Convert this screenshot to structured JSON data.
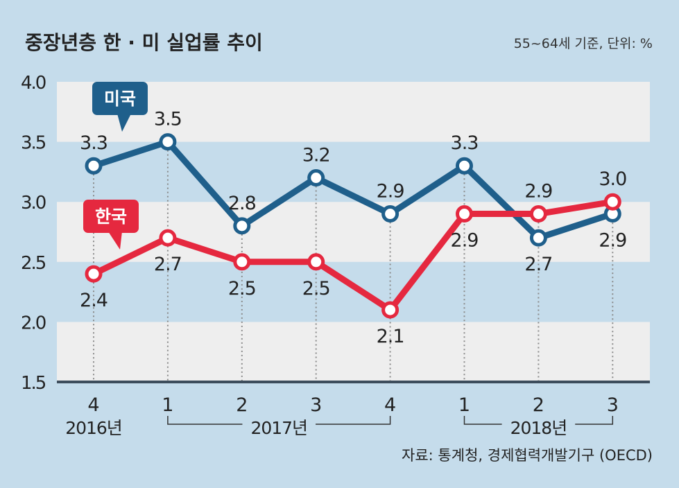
{
  "chart_data": {
    "type": "line",
    "title": "중장년층 한 · 미 실업률 추이",
    "subtitle": "55~64세 기준, 단위: %",
    "source": "자료: 통계청, 경제협력개발기구 (OECD)",
    "categories": [
      "4",
      "1",
      "2",
      "3",
      "4",
      "1",
      "2",
      "3"
    ],
    "year_groups": [
      {
        "label": "2016년",
        "start": 0,
        "end": 0
      },
      {
        "label": "2017년",
        "start": 1,
        "end": 4
      },
      {
        "label": "2018년",
        "start": 5,
        "end": 7
      }
    ],
    "ylim": [
      1.5,
      4.0
    ],
    "yticks": [
      "1.5",
      "2.0",
      "2.5",
      "3.0",
      "3.5",
      "4.0"
    ],
    "series": [
      {
        "name": "미국",
        "color": "#1f5f8b",
        "values": [
          3.3,
          3.5,
          2.8,
          3.2,
          2.9,
          3.3,
          2.7,
          2.9
        ],
        "labels": [
          "3.3",
          "3.5",
          "2.8",
          "3.2",
          "2.9",
          "3.3",
          "2.7",
          "2.9"
        ]
      },
      {
        "name": "한국",
        "color": "#e5283f",
        "values": [
          2.4,
          2.7,
          2.5,
          2.5,
          2.1,
          2.9,
          2.9,
          3.0
        ],
        "labels": [
          "2.4",
          "2.7",
          "2.5",
          "2.5",
          "2.1",
          "2.9",
          "2.9",
          "3.0"
        ]
      }
    ]
  }
}
